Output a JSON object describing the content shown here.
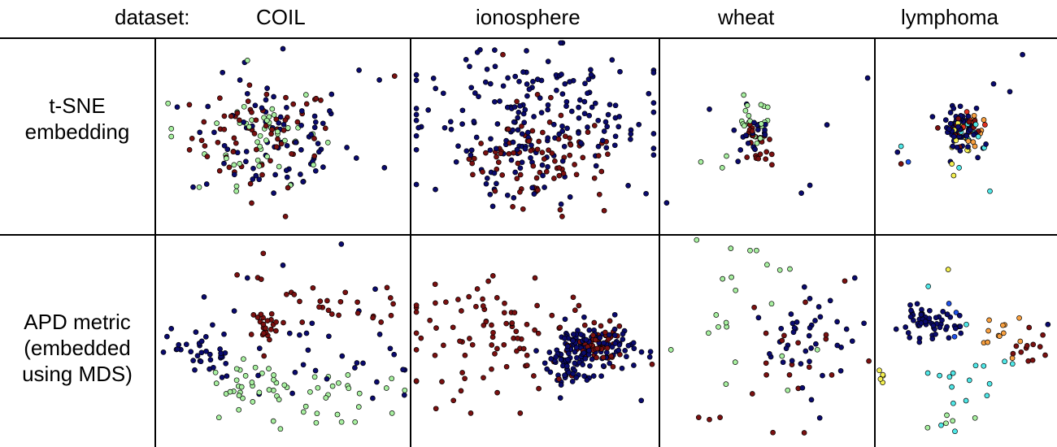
{
  "header": {
    "dataset_label": "dataset:",
    "columns": [
      "COIL",
      "ionosphere",
      "wheat",
      "lymphoma"
    ]
  },
  "rows": [
    {
      "line1": "t-SNE",
      "line2": "embedding",
      "line3": ""
    },
    {
      "line1": "APD metric",
      "line2": "(embedded",
      "line3": "using MDS)"
    }
  ],
  "colors": {
    "navy": "#0a0a6e",
    "maroon": "#7a1010",
    "lightgreen": "#a8f0a0",
    "cyan": "#50e8e8",
    "yellow": "#f4f050",
    "orange": "#f8a040",
    "red": "#e03020",
    "blue": "#1e50e8",
    "outline": "#000000"
  },
  "chart_data": [
    {
      "type": "scatter",
      "row": "t-SNE embedding",
      "dataset": "COIL",
      "xlim": [
        0,
        1
      ],
      "ylim": [
        0,
        1
      ],
      "clusters": [
        {
          "color": "maroon",
          "n": 70,
          "cx": 0.42,
          "cy": 0.5,
          "sx": 0.14,
          "sy": 0.13
        },
        {
          "color": "navy",
          "n": 75,
          "cx": 0.45,
          "cy": 0.48,
          "sx": 0.16,
          "sy": 0.16
        },
        {
          "color": "lightgreen",
          "n": 45,
          "cx": 0.43,
          "cy": 0.52,
          "sx": 0.11,
          "sy": 0.13
        }
      ],
      "points": [
        {
          "x": 0.5,
          "y": 0.95,
          "c": "navy"
        },
        {
          "x": 0.36,
          "y": 0.89,
          "c": "lightgreen"
        },
        {
          "x": 0.94,
          "y": 0.81,
          "c": "maroon"
        },
        {
          "x": 0.06,
          "y": 0.54,
          "c": "lightgreen"
        },
        {
          "x": 0.06,
          "y": 0.5,
          "c": "lightgreen"
        },
        {
          "x": 0.9,
          "y": 0.34,
          "c": "navy"
        },
        {
          "x": 0.51,
          "y": 0.09,
          "c": "maroon"
        },
        {
          "x": 0.17,
          "y": 0.24,
          "c": "lightgreen"
        },
        {
          "x": 0.88,
          "y": 0.79,
          "c": "navy"
        },
        {
          "x": 0.8,
          "y": 0.84,
          "c": "navy"
        }
      ]
    },
    {
      "type": "scatter",
      "row": "t-SNE embedding",
      "dataset": "ionosphere",
      "xlim": [
        0,
        1
      ],
      "ylim": [
        0,
        1
      ],
      "clusters": [
        {
          "color": "navy",
          "n": 200,
          "cx": 0.5,
          "cy": 0.55,
          "sx": 0.22,
          "sy": 0.19
        },
        {
          "color": "maroon",
          "n": 85,
          "cx": 0.52,
          "cy": 0.38,
          "sx": 0.15,
          "sy": 0.12
        }
      ],
      "points": [
        {
          "x": 0.37,
          "y": 0.92,
          "c": "maroon"
        },
        {
          "x": 0.61,
          "y": 0.09,
          "c": "maroon"
        },
        {
          "x": 0.04,
          "y": 0.55,
          "c": "navy"
        },
        {
          "x": 0.96,
          "y": 0.72,
          "c": "navy"
        },
        {
          "x": 0.41,
          "y": 0.14,
          "c": "maroon"
        },
        {
          "x": 0.78,
          "y": 0.12,
          "c": "maroon"
        }
      ]
    },
    {
      "type": "scatter",
      "row": "t-SNE embedding",
      "dataset": "wheat",
      "xlim": [
        0,
        1
      ],
      "ylim": [
        0,
        1
      ],
      "clusters": [
        {
          "color": "lightgreen",
          "n": 22,
          "cx": 0.45,
          "cy": 0.56,
          "sx": 0.045,
          "sy": 0.06
        },
        {
          "color": "maroon",
          "n": 24,
          "cx": 0.46,
          "cy": 0.46,
          "sx": 0.04,
          "sy": 0.06
        },
        {
          "color": "navy",
          "n": 18,
          "cx": 0.45,
          "cy": 0.5,
          "sx": 0.05,
          "sy": 0.06
        }
      ],
      "points": [
        {
          "x": 0.23,
          "y": 0.64,
          "c": "navy"
        },
        {
          "x": 0.97,
          "y": 0.8,
          "c": "navy"
        },
        {
          "x": 0.78,
          "y": 0.56,
          "c": "navy"
        },
        {
          "x": 0.7,
          "y": 0.25,
          "c": "navy"
        },
        {
          "x": 0.66,
          "y": 0.21,
          "c": "navy"
        },
        {
          "x": 0.03,
          "y": 0.16,
          "c": "navy"
        },
        {
          "x": 0.19,
          "y": 0.37,
          "c": "lightgreen"
        },
        {
          "x": 0.29,
          "y": 0.34,
          "c": "lightgreen"
        },
        {
          "x": 0.31,
          "y": 0.4,
          "c": "lightgreen"
        }
      ]
    },
    {
      "type": "scatter",
      "row": "t-SNE embedding",
      "dataset": "lymphoma",
      "xlim": [
        0,
        1
      ],
      "ylim": [
        0,
        1
      ],
      "clusters": [
        {
          "color": "navy",
          "n": 60,
          "cx": 0.48,
          "cy": 0.54,
          "sx": 0.06,
          "sy": 0.05
        },
        {
          "color": "maroon",
          "n": 14,
          "cx": 0.48,
          "cy": 0.56,
          "sx": 0.05,
          "sy": 0.04
        },
        {
          "color": "red",
          "n": 8,
          "cx": 0.5,
          "cy": 0.55,
          "sx": 0.05,
          "sy": 0.04
        },
        {
          "color": "orange",
          "n": 10,
          "cx": 0.52,
          "cy": 0.53,
          "sx": 0.05,
          "sy": 0.04
        },
        {
          "color": "yellow",
          "n": 8,
          "cx": 0.45,
          "cy": 0.52,
          "sx": 0.05,
          "sy": 0.05
        },
        {
          "color": "cyan",
          "n": 10,
          "cx": 0.52,
          "cy": 0.5,
          "sx": 0.06,
          "sy": 0.06
        }
      ],
      "points": [
        {
          "x": 0.81,
          "y": 0.92,
          "c": "navy"
        },
        {
          "x": 0.65,
          "y": 0.77,
          "c": "navy"
        },
        {
          "x": 0.74,
          "y": 0.73,
          "c": "navy"
        },
        {
          "x": 0.14,
          "y": 0.45,
          "c": "cyan"
        },
        {
          "x": 0.12,
          "y": 0.42,
          "c": "navy"
        },
        {
          "x": 0.18,
          "y": 0.37,
          "c": "blue"
        },
        {
          "x": 0.14,
          "y": 0.36,
          "c": "maroon"
        },
        {
          "x": 0.46,
          "y": 0.34,
          "c": "cyan"
        },
        {
          "x": 0.43,
          "y": 0.3,
          "c": "yellow"
        },
        {
          "x": 0.63,
          "y": 0.22,
          "c": "cyan"
        },
        {
          "x": 0.42,
          "y": 0.36,
          "c": "yellow"
        }
      ]
    },
    {
      "type": "scatter",
      "row": "APD metric (embedded using MDS)",
      "dataset": "COIL",
      "xlim": [
        0,
        1
      ],
      "ylim": [
        0,
        1
      ],
      "clusters": [
        {
          "color": "navy",
          "n": 35,
          "cx": 0.2,
          "cy": 0.45,
          "sx": 0.07,
          "sy": 0.06
        },
        {
          "color": "maroon",
          "n": 22,
          "cx": 0.43,
          "cy": 0.56,
          "sx": 0.03,
          "sy": 0.04
        },
        {
          "color": "lightgreen",
          "n": 28,
          "cx": 0.38,
          "cy": 0.28,
          "sx": 0.06,
          "sy": 0.06
        },
        {
          "color": "lightgreen",
          "n": 30,
          "cx": 0.65,
          "cy": 0.25,
          "sx": 0.16,
          "sy": 0.1
        },
        {
          "color": "maroon",
          "n": 30,
          "cx": 0.7,
          "cy": 0.67,
          "sx": 0.18,
          "sy": 0.07
        },
        {
          "color": "navy",
          "n": 30,
          "cx": 0.65,
          "cy": 0.45,
          "sx": 0.2,
          "sy": 0.12
        }
      ],
      "points": [
        {
          "x": 0.73,
          "y": 0.96,
          "c": "navy"
        },
        {
          "x": 0.36,
          "y": 0.8,
          "c": "navy"
        },
        {
          "x": 0.5,
          "y": 0.86,
          "c": "navy"
        },
        {
          "x": 0.06,
          "y": 0.56,
          "c": "navy"
        },
        {
          "x": 0.93,
          "y": 0.16,
          "c": "lightgreen"
        }
      ]
    },
    {
      "type": "scatter",
      "row": "APD metric (embedded using MDS)",
      "dataset": "ionosphere",
      "xlim": [
        0,
        1
      ],
      "ylim": [
        0,
        1
      ],
      "clusters": [
        {
          "color": "maroon",
          "n": 90,
          "cx": 0.4,
          "cy": 0.52,
          "sx": 0.22,
          "sy": 0.12
        },
        {
          "color": "navy",
          "n": 120,
          "cx": 0.72,
          "cy": 0.47,
          "sx": 0.09,
          "sy": 0.06
        },
        {
          "color": "maroon",
          "n": 50,
          "cx": 0.76,
          "cy": 0.48,
          "sx": 0.05,
          "sy": 0.04
        },
        {
          "color": "navy",
          "n": 40,
          "cx": 0.62,
          "cy": 0.36,
          "sx": 0.05,
          "sy": 0.06
        }
      ],
      "points": [
        {
          "x": 0.33,
          "y": 0.81,
          "c": "maroon"
        },
        {
          "x": 0.5,
          "y": 0.8,
          "c": "maroon"
        },
        {
          "x": 0.17,
          "y": 0.22,
          "c": "maroon"
        },
        {
          "x": 0.93,
          "y": 0.22,
          "c": "navy"
        },
        {
          "x": 0.44,
          "y": 0.16,
          "c": "maroon"
        },
        {
          "x": 0.24,
          "y": 0.16,
          "c": "maroon"
        }
      ]
    },
    {
      "type": "scatter",
      "row": "APD metric (embedded using MDS)",
      "dataset": "wheat",
      "xlim": [
        0,
        1
      ],
      "ylim": [
        0,
        1
      ],
      "clusters": [
        {
          "color": "navy",
          "n": 40,
          "cx": 0.72,
          "cy": 0.45,
          "sx": 0.14,
          "sy": 0.17
        },
        {
          "color": "maroon",
          "n": 20,
          "cx": 0.62,
          "cy": 0.38,
          "sx": 0.16,
          "sy": 0.18
        },
        {
          "color": "lightgreen",
          "n": 18,
          "cx": 0.3,
          "cy": 0.62,
          "sx": 0.16,
          "sy": 0.16
        }
      ],
      "points": [
        {
          "x": 0.33,
          "y": 0.94,
          "c": "lightgreen"
        },
        {
          "x": 0.42,
          "y": 0.93,
          "c": "lightgreen"
        },
        {
          "x": 0.45,
          "y": 0.93,
          "c": "lightgreen"
        },
        {
          "x": 0.05,
          "y": 0.46,
          "c": "lightgreen"
        },
        {
          "x": 0.91,
          "y": 0.8,
          "c": "navy"
        },
        {
          "x": 0.18,
          "y": 0.14,
          "c": "maroon"
        },
        {
          "x": 0.23,
          "y": 0.13,
          "c": "maroon"
        },
        {
          "x": 0.28,
          "y": 0.14,
          "c": "maroon"
        }
      ]
    },
    {
      "type": "scatter",
      "row": "APD metric (embedded using MDS)",
      "dataset": "lymphoma",
      "xlim": [
        0,
        1
      ],
      "ylim": [
        0,
        1
      ],
      "clusters": [
        {
          "color": "navy",
          "n": 55,
          "cx": 0.28,
          "cy": 0.58,
          "sx": 0.09,
          "sy": 0.035
        },
        {
          "color": "orange",
          "n": 12,
          "cx": 0.68,
          "cy": 0.55,
          "sx": 0.07,
          "sy": 0.05
        },
        {
          "color": "maroon",
          "n": 12,
          "cx": 0.84,
          "cy": 0.44,
          "sx": 0.06,
          "sy": 0.06
        },
        {
          "color": "cyan",
          "n": 16,
          "cx": 0.5,
          "cy": 0.3,
          "sx": 0.15,
          "sy": 0.12
        },
        {
          "color": "yellow",
          "n": 5,
          "cx": 0.04,
          "cy": 0.35,
          "sx": 0.02,
          "sy": 0.05
        },
        {
          "color": "lightgreen",
          "n": 5,
          "cx": 0.4,
          "cy": 0.14,
          "sx": 0.07,
          "sy": 0.02
        },
        {
          "color": "blue",
          "n": 3,
          "cx": 0.44,
          "cy": 0.62,
          "sx": 0.04,
          "sy": 0.04
        }
      ],
      "points": [
        {
          "x": 0.4,
          "y": 0.84,
          "c": "yellow"
        },
        {
          "x": 0.29,
          "y": 0.76,
          "c": "cyan"
        },
        {
          "x": 0.95,
          "y": 0.58,
          "c": "navy"
        },
        {
          "x": 0.5,
          "y": 0.58,
          "c": "cyan"
        }
      ]
    }
  ]
}
